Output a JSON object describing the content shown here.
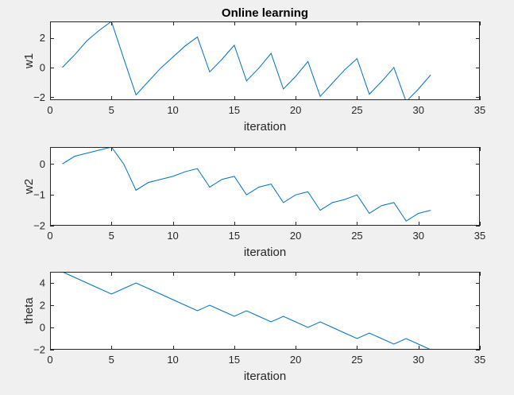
{
  "figure": {
    "background": "#f0f0f0",
    "axes_background": "#ffffff",
    "line_color": "#0072bd",
    "axis_color": "#262626"
  },
  "chart_data": [
    {
      "type": "line",
      "title": "Online learning",
      "xlabel": "iteration",
      "ylabel": "w1",
      "xlim": [
        0,
        35
      ],
      "ylim": [
        -2.2,
        3.1
      ],
      "xticks": [
        0,
        5,
        10,
        15,
        20,
        25,
        30,
        35
      ],
      "yticks": [
        -2,
        0,
        2
      ],
      "grid": false,
      "series": [
        {
          "x": [
            1,
            2,
            3,
            4,
            5,
            6,
            7,
            8,
            9,
            10,
            11,
            12,
            13,
            14,
            15,
            16,
            17,
            18,
            19,
            20,
            21,
            22,
            23,
            24,
            25,
            26,
            27,
            28,
            29,
            30,
            31
          ],
          "values": [
            0.0,
            0.85,
            1.8,
            2.5,
            3.1,
            0.6,
            -1.85,
            -0.95,
            -0.05,
            0.7,
            1.45,
            2.05,
            -0.3,
            0.55,
            1.5,
            -0.9,
            -0.05,
            0.95,
            -1.45,
            -0.6,
            0.4,
            -1.95,
            -1.05,
            -0.15,
            0.6,
            -1.8,
            -0.95,
            0.0,
            -2.3,
            -1.45,
            -0.5
          ]
        }
      ]
    },
    {
      "type": "line",
      "title": "",
      "xlabel": "iteration",
      "ylabel": "w2",
      "xlim": [
        0,
        35
      ],
      "ylim": [
        -2,
        0.55
      ],
      "xticks": [
        0,
        5,
        10,
        15,
        20,
        25,
        30,
        35
      ],
      "yticks": [
        -2,
        -1,
        0
      ],
      "grid": false,
      "series": [
        {
          "x": [
            1,
            2,
            3,
            4,
            5,
            6,
            7,
            8,
            9,
            10,
            11,
            12,
            13,
            14,
            15,
            16,
            17,
            18,
            19,
            20,
            21,
            22,
            23,
            24,
            25,
            26,
            27,
            28,
            29,
            30,
            31
          ],
          "values": [
            0.0,
            0.25,
            0.35,
            0.45,
            0.55,
            0.0,
            -0.85,
            -0.6,
            -0.5,
            -0.4,
            -0.25,
            -0.15,
            -0.75,
            -0.5,
            -0.4,
            -1.0,
            -0.75,
            -0.65,
            -1.25,
            -1.0,
            -0.9,
            -1.5,
            -1.25,
            -1.15,
            -1.0,
            -1.6,
            -1.35,
            -1.25,
            -1.85,
            -1.6,
            -1.5
          ]
        }
      ]
    },
    {
      "type": "line",
      "title": "",
      "xlabel": "iteration",
      "ylabel": "theta",
      "xlim": [
        0,
        35
      ],
      "ylim": [
        -2,
        5
      ],
      "xticks": [
        0,
        5,
        10,
        15,
        20,
        25,
        30,
        35
      ],
      "yticks": [
        -2,
        0,
        2,
        4
      ],
      "grid": false,
      "series": [
        {
          "x": [
            1,
            2,
            3,
            4,
            5,
            6,
            7,
            8,
            9,
            10,
            11,
            12,
            13,
            14,
            15,
            16,
            17,
            18,
            19,
            20,
            21,
            22,
            23,
            24,
            25,
            26,
            27,
            28,
            29,
            30,
            31
          ],
          "values": [
            5,
            4.5,
            4,
            3.5,
            3,
            3.5,
            4,
            3.5,
            3,
            2.5,
            2,
            1.5,
            2,
            1.5,
            1,
            1.5,
            1,
            0.5,
            1,
            0.5,
            0,
            0.5,
            0,
            -0.5,
            -1,
            -0.5,
            -1,
            -1.5,
            -1,
            -1.5,
            -2
          ]
        }
      ]
    }
  ]
}
